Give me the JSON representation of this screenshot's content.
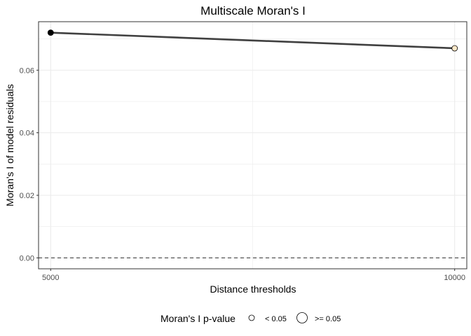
{
  "chart_data": {
    "type": "line",
    "title": "Multiscale Moran's I",
    "xlabel": "Distance thresholds",
    "ylabel": "Moran's I of model residuals",
    "x": [
      5000,
      10000
    ],
    "series": [
      {
        "values": [
          0.072,
          0.067
        ],
        "point_fill": [
          "#000000",
          "#fde8c8"
        ],
        "point_size_class": [
          "< 0.05",
          "< 0.05"
        ]
      }
    ],
    "xlim": [
      4850,
      10150
    ],
    "ylim": [
      -0.0035,
      0.0755
    ],
    "xticks": [
      5000,
      10000
    ],
    "xtick_labels": [
      "5000",
      "10000"
    ],
    "yticks": [
      0.0,
      0.02,
      0.04,
      0.06
    ],
    "ytick_labels": [
      "0.00",
      "0.02",
      "0.04",
      "0.06"
    ],
    "reference_line": {
      "y": 0.0,
      "style": "dashed"
    },
    "grid": true,
    "legend": {
      "title": "Moran's I p-value",
      "position": "bottom",
      "entries": [
        "< 0.05",
        ">= 0.05"
      ]
    }
  },
  "colors": {
    "line": "#404040",
    "grid": "#ebebeb",
    "panel_border": "#333333",
    "tick_label": "#4d4d4d"
  }
}
